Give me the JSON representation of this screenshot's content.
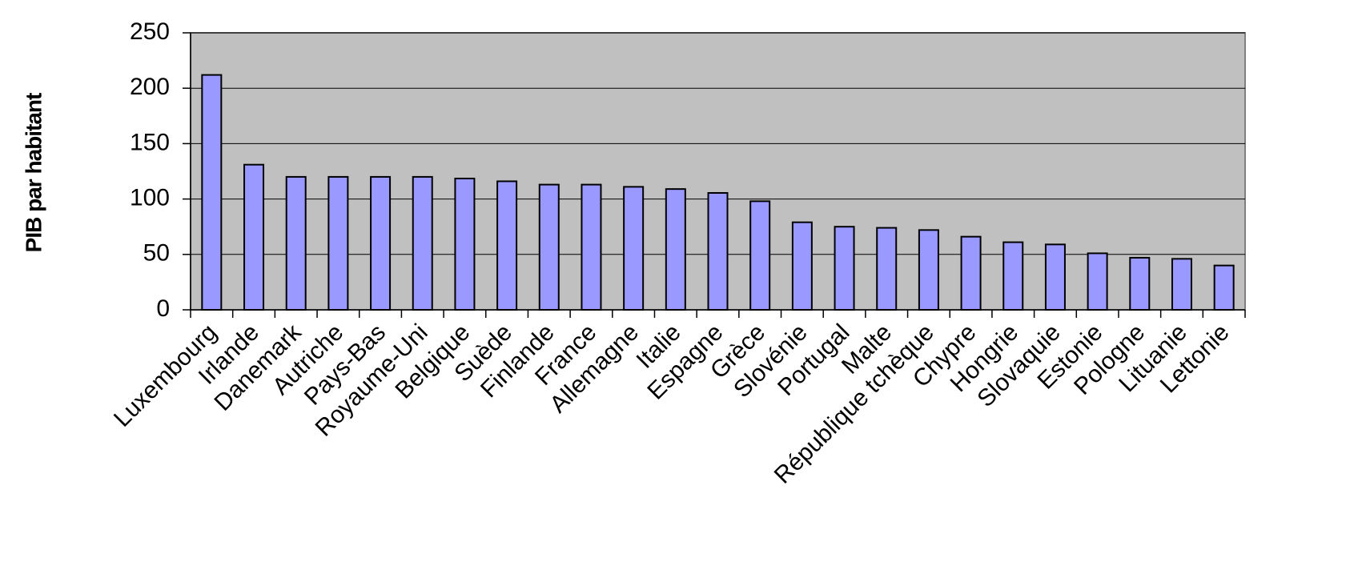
{
  "chart_data": {
    "type": "bar",
    "y_label": "PIB par habitant",
    "categories": [
      "Luxembourg",
      "Irlande",
      "Danemark",
      "Autriche",
      "Pays-Bas",
      "Royaume-Uni",
      "Belgique",
      "Suède",
      "Finlande",
      "France",
      "Allemagne",
      "Italie",
      "Espagne",
      "Grèce",
      "Slovénie",
      "Portugal",
      "Malte",
      "République tchèque",
      "Chypre",
      "Hongrie",
      "Slovaquie",
      "Estonie",
      "Pologne",
      "Lituanie",
      "Lettonie"
    ],
    "values": [
      212,
      131,
      120,
      120,
      120,
      120,
      118.5,
      116,
      113,
      113,
      111,
      109,
      105.5,
      98,
      79,
      75,
      74,
      72,
      66,
      61,
      59,
      51,
      47,
      46,
      40
    ],
    "color": "#9999ff",
    "ylim": [
      0,
      250
    ],
    "yticks": [
      0,
      50,
      100,
      150,
      200,
      250
    ],
    "grid": true
  }
}
